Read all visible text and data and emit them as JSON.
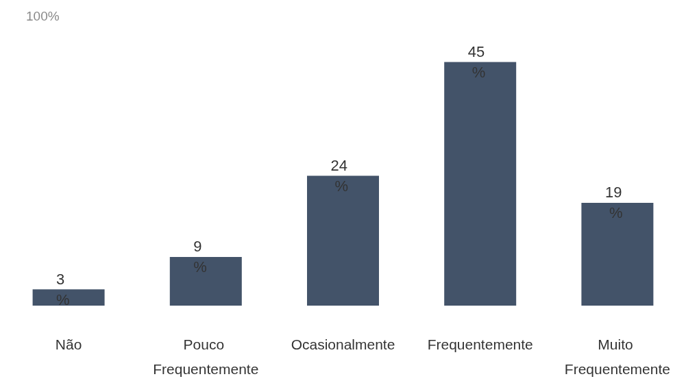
{
  "chart_data": {
    "type": "bar",
    "categories": [
      "Não",
      "Pouco Frequentemente",
      "Ocasionalmente",
      "Frequentemente",
      "Muito Frequentemente"
    ],
    "values": [
      3,
      9,
      24,
      45,
      19
    ],
    "value_labels": [
      "3 %",
      "9 %",
      "24 %",
      "45 %",
      "19 %"
    ],
    "color": "#435369",
    "annotations": [
      "100%"
    ]
  }
}
